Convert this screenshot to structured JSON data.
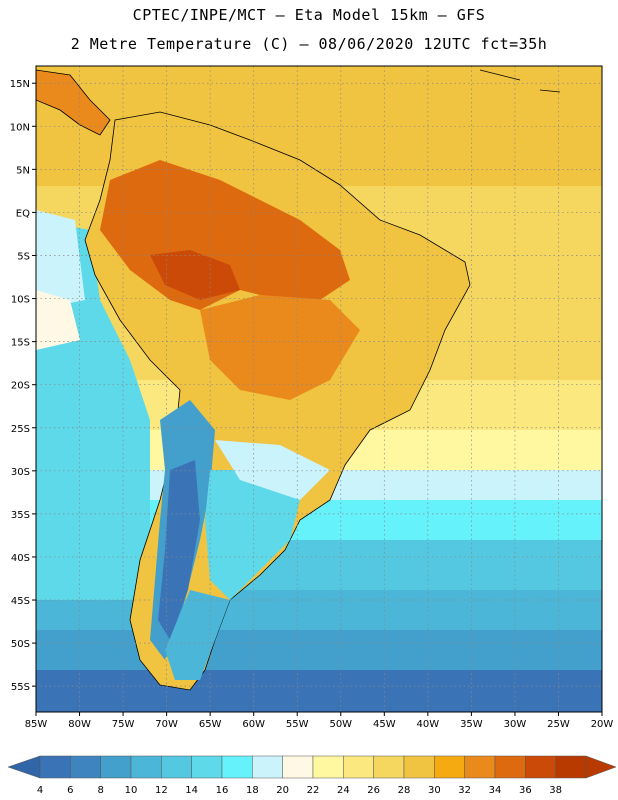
{
  "header": {
    "line1": "CPTEC/INPE/MCT –  Eta Model 15km – GFS",
    "line2": "2 Metre Temperature (C) – 08/06/2020 12UTC fct=35h"
  },
  "map": {
    "lat_labels": [
      "15N",
      "10N",
      "5N",
      "EQ",
      "5S",
      "10S",
      "15S",
      "20S",
      "25S",
      "30S",
      "35S",
      "40S",
      "45S",
      "50S",
      "55S"
    ],
    "lon_labels": [
      "85W",
      "80W",
      "75W",
      "70W",
      "65W",
      "60W",
      "55W",
      "50W",
      "45W",
      "40W",
      "35W",
      "30W",
      "25W",
      "20W"
    ],
    "lon_range": [
      -85,
      -20
    ],
    "lat_range": [
      -58,
      17
    ],
    "grid": true
  },
  "colorbar": {
    "labels": [
      "4",
      "6",
      "8",
      "10",
      "12",
      "14",
      "16",
      "18",
      "20",
      "22",
      "24",
      "26",
      "28",
      "30",
      "32",
      "34",
      "36",
      "38"
    ],
    "colors": [
      "#3a74b7",
      "#3e85c0",
      "#43a0cc",
      "#4cb6d9",
      "#54c8e0",
      "#5ed9ea",
      "#66f2fa",
      "#cbf3fb",
      "#fff8e4",
      "#fff8a0",
      "#fbe97f",
      "#f5d760",
      "#f0c340",
      "#f5aa12",
      "#ea8a1c",
      "#de6a10",
      "#cc4a08",
      "#b83a00"
    ],
    "low_color": "#3066a8",
    "high_color": "#b83a00"
  }
}
